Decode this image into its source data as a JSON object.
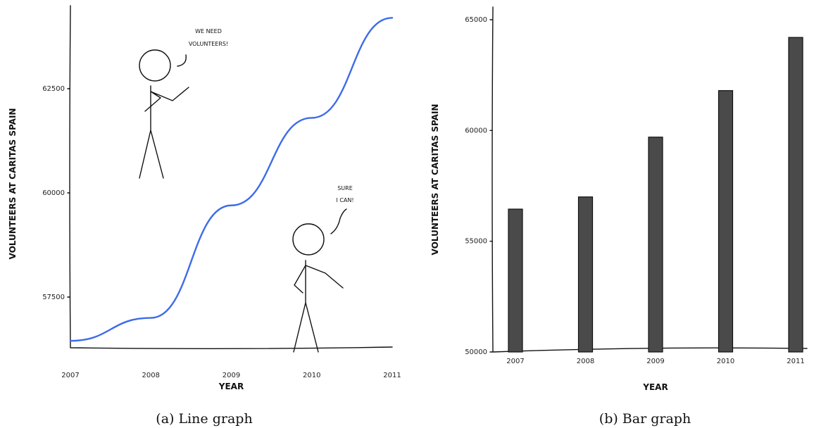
{
  "chart_data": [
    {
      "type": "line",
      "title": "",
      "xlabel": "YEAR",
      "ylabel": "VOLUNTEERS AT CARITAS SPAIN",
      "x": [
        2007,
        2008,
        2009,
        2010,
        2011
      ],
      "x_tick_labels": [
        "2007",
        "2008",
        "2009",
        "2010",
        "2011"
      ],
      "y_ticks": [
        57500,
        60000,
        62500
      ],
      "y_tick_labels": [
        "57500",
        "60000",
        "62500"
      ],
      "ylim": [
        56300,
        64300
      ],
      "xlim": [
        2007,
        2011
      ],
      "series": [
        {
          "values": [
            56450,
            57000,
            59700,
            61800,
            64200
          ],
          "color": "#3d6bea"
        }
      ],
      "annotations": [
        {
          "text_lines": [
            "WE NEED",
            "VOLUNTEERS!"
          ]
        },
        {
          "text_lines": [
            "SURE",
            "I CAN!"
          ]
        }
      ],
      "grid": false,
      "caption": "(a) Line graph"
    },
    {
      "type": "bar",
      "title": "",
      "xlabel": "YEAR",
      "ylabel": "VOLUNTEERS AT CARITAS SPAIN",
      "categories": [
        "2007",
        "2008",
        "2009",
        "2010",
        "2011"
      ],
      "values": [
        56450,
        57000,
        59700,
        61800,
        64200
      ],
      "y_ticks": [
        50000,
        55000,
        60000,
        65000
      ],
      "y_tick_labels": [
        "50000",
        "55000",
        "60000",
        "65000"
      ],
      "ylim": [
        50000,
        65000
      ],
      "bar_color": "#4a4a4a",
      "grid": false,
      "caption": "(b) Bar graph"
    }
  ]
}
